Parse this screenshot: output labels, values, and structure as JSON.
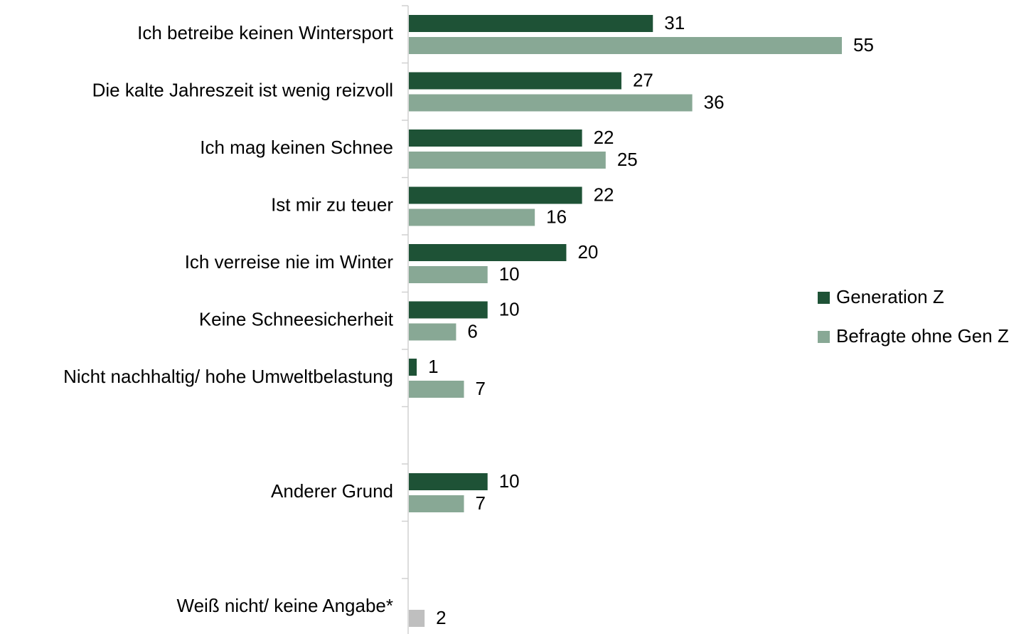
{
  "chart_data": {
    "type": "bar",
    "orientation": "horizontal",
    "categories": [
      "Ich betreibe keinen Wintersport",
      "Die kalte Jahreszeit ist wenig reizvoll",
      "Ich mag keinen Schnee",
      "Ist mir zu teuer",
      "Ich verreise nie im Winter",
      "Keine Schneesicherheit",
      "Nicht nachhaltig/ hohe Umweltbelastung",
      null,
      "Anderer Grund",
      null,
      "Weiß nicht/ keine Angabe*"
    ],
    "series": [
      {
        "name": "Generation Z",
        "color": "#1e5236",
        "values": [
          31,
          27,
          22,
          22,
          20,
          10,
          1,
          null,
          10,
          null,
          null
        ]
      },
      {
        "name": "Befragte ohne Gen Z",
        "color": "#88a895",
        "values": [
          55,
          36,
          25,
          16,
          10,
          6,
          7,
          null,
          7,
          null,
          2
        ],
        "point_colors": {
          "10": "#bfbfbf"
        }
      }
    ],
    "xlim": [
      0,
      55
    ],
    "legend": "right"
  }
}
